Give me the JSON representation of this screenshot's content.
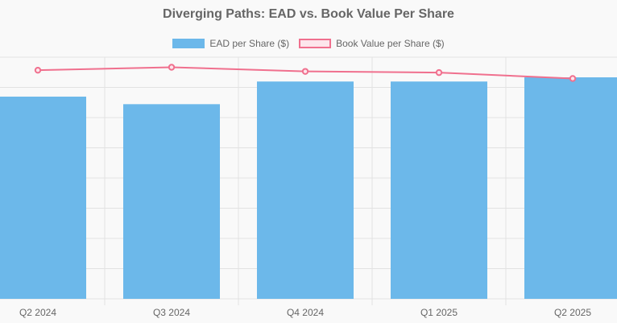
{
  "colors": {
    "bar_fill": "#6cb8ea",
    "line": "#f0708e",
    "line_fill": "#fde6ec",
    "grid": "#e2e2e2",
    "text": "#666666",
    "background": "#f9f9f9"
  },
  "chart_data": {
    "type": "bar",
    "title": "Diverging Paths: EAD vs. Book Value Per Share",
    "categories": [
      "Q2 2024",
      "Q3 2024",
      "Q4 2024",
      "Q1 2025",
      "Q2 2025"
    ],
    "series": [
      {
        "name": "EAD per Share ($)",
        "type": "bar",
        "values": [
          12.05,
          11.6,
          12.95,
          12.95,
          13.2
        ]
      },
      {
        "name": "Book Value per Share ($)",
        "type": "line",
        "values": [
          19.3,
          19.55,
          19.2,
          19.1,
          18.6
        ]
      }
    ],
    "legend_position": "top",
    "grid": true
  }
}
